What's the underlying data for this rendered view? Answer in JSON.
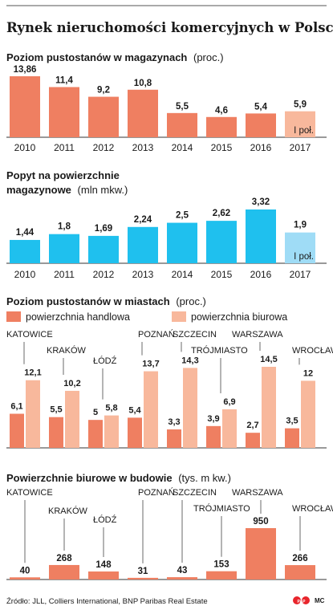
{
  "title": "Rynek nieruchomości komercyjnych w Polsce",
  "source": "Źródło: JLL, Colliers International, BNP Paribas Real Estate",
  "logo": "PAP",
  "author": "MC",
  "colors": {
    "orange": "#ef7f61",
    "orange_light": "#f8b89c",
    "blue": "#1fc0ee",
    "blue_light": "#9fdcf6",
    "text": "#1a1a1a",
    "logo_red": "#e8252c"
  },
  "chart_data": [
    {
      "type": "bar",
      "title": "Poziom pustostanów w magazynach",
      "unit": "(proc.)",
      "categories": [
        "2010",
        "2011",
        "2012",
        "2013",
        "2014",
        "2015",
        "2016",
        "2017"
      ],
      "values": [
        13.86,
        11.4,
        9.2,
        10.8,
        5.5,
        4.6,
        5.4,
        5.9
      ],
      "labels": [
        "13,86",
        "11,4",
        "9,2",
        "10,8",
        "5,5",
        "4,6",
        "5,4",
        "5,9"
      ],
      "highlight_note": "I poł.",
      "ylim": [
        0,
        13.86
      ]
    },
    {
      "type": "bar",
      "title": "Popyt na powierzchnie magazynowe",
      "title_line1": "Popyt na powierzchnie",
      "title_line2": "magazynowe",
      "unit": "(mln mkw.)",
      "categories": [
        "2010",
        "2011",
        "2012",
        "2013",
        "2014",
        "2015",
        "2016",
        "2017"
      ],
      "values": [
        1.44,
        1.8,
        1.69,
        2.24,
        2.5,
        2.62,
        3.32,
        1.9
      ],
      "labels": [
        "1,44",
        "1,8",
        "1,69",
        "2,24",
        "2,5",
        "2,62",
        "3,32",
        "1,9"
      ],
      "highlight_note": "I poł.",
      "ylim": [
        0,
        3.32
      ]
    },
    {
      "type": "bar",
      "title": "Poziom pustostanów w miastach",
      "unit": "(proc.)",
      "categories": [
        "KATOWICE",
        "KRAKÓW",
        "ŁÓDŹ",
        "POZNAŃ",
        "SZCZECIN",
        "TRÓJMIASTO",
        "WARSZAWA",
        "WROCŁAW"
      ],
      "series": [
        {
          "name": "powierzchnia handlowa",
          "values": [
            6.1,
            5.5,
            5,
            5.4,
            3.3,
            3.9,
            2.7,
            3.5
          ],
          "labels": [
            "6,1",
            "5,5",
            "5",
            "5,4",
            "3,3",
            "3,9",
            "2,7",
            "3,5"
          ]
        },
        {
          "name": "powierzchnia biurowa",
          "values": [
            12.1,
            10.2,
            5.8,
            13.7,
            14.3,
            6.9,
            14.5,
            12
          ],
          "labels": [
            "12,1",
            "10,2",
            "5,8",
            "13,7",
            "14,3",
            "6,9",
            "14,5",
            "12"
          ]
        }
      ],
      "ylim": [
        0,
        14.5
      ]
    },
    {
      "type": "bar",
      "title": "Powierzchnie biurowe w budowie",
      "unit": "(tys. m kw.)",
      "categories": [
        "KATOWICE",
        "KRAKÓW",
        "ŁÓDŹ",
        "POZNAŃ",
        "SZCZECIN",
        "TRÓJMIASTO",
        "WARSZAWA",
        "WROCŁAW"
      ],
      "values": [
        40,
        268,
        148,
        31,
        43,
        153,
        950,
        266
      ],
      "labels": [
        "40",
        "268",
        "148",
        "31",
        "43",
        "153",
        "950",
        "266"
      ],
      "ylim": [
        0,
        950
      ]
    }
  ]
}
